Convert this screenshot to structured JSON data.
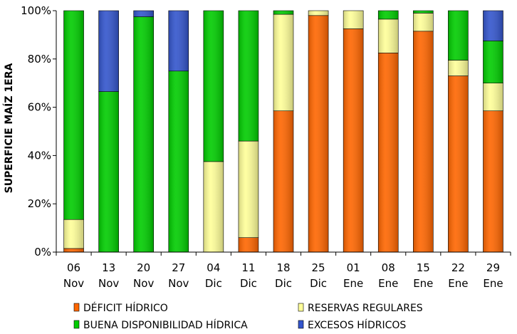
{
  "chart_data": {
    "type": "bar",
    "stacked": true,
    "ylabel": "SUPERFICIE MAÍZ 1ERA",
    "yticks": [
      "0%",
      "20%",
      "40%",
      "60%",
      "80%",
      "100%"
    ],
    "ylim": [
      0,
      100
    ],
    "grid": false,
    "legend_position": "bottom",
    "categories": [
      {
        "day": "06",
        "month": "Nov"
      },
      {
        "day": "13",
        "month": "Nov"
      },
      {
        "day": "20",
        "month": "Nov"
      },
      {
        "day": "27",
        "month": "Nov"
      },
      {
        "day": "04",
        "month": "Dic"
      },
      {
        "day": "11",
        "month": "Dic"
      },
      {
        "day": "18",
        "month": "Dic"
      },
      {
        "day": "25",
        "month": "Dic"
      },
      {
        "day": "01",
        "month": "Ene"
      },
      {
        "day": "08",
        "month": "Ene"
      },
      {
        "day": "15",
        "month": "Ene"
      },
      {
        "day": "22",
        "month": "Ene"
      },
      {
        "day": "29",
        "month": "Ene"
      }
    ],
    "series": [
      {
        "name": "DÉFICIT HÍDRICO",
        "color": "#ff6600",
        "values": [
          1.5,
          0,
          0,
          0,
          0,
          6,
          58.5,
          98,
          92.5,
          82.5,
          91.5,
          73,
          58.5
        ]
      },
      {
        "name": "RESERVAS REGULARES",
        "color": "#ffff99",
        "values": [
          12,
          0,
          0,
          0,
          37.5,
          40,
          40,
          2,
          7.5,
          14,
          7.5,
          6.5,
          11.5
        ]
      },
      {
        "name": "BUENA DISPONIBILIDAD HÍDRICA",
        "color": "#00cc00",
        "values": [
          86.5,
          66.5,
          97.5,
          75,
          62.5,
          54,
          1.5,
          0,
          0,
          3.5,
          1,
          20.5,
          17.5
        ]
      },
      {
        "name": "EXCESOS HÍDRICOS",
        "color": "#3355cc",
        "values": [
          0,
          33.5,
          2.5,
          25,
          0,
          0,
          0,
          0,
          0,
          0,
          0,
          0,
          12.5
        ]
      }
    ],
    "legend_order": [
      "DÉFICIT HÍDRICO",
      "RESERVAS REGULARES",
      "BUENA DISPONIBILIDAD HÍDRICA",
      "EXCESOS HÍDRICOS"
    ]
  }
}
